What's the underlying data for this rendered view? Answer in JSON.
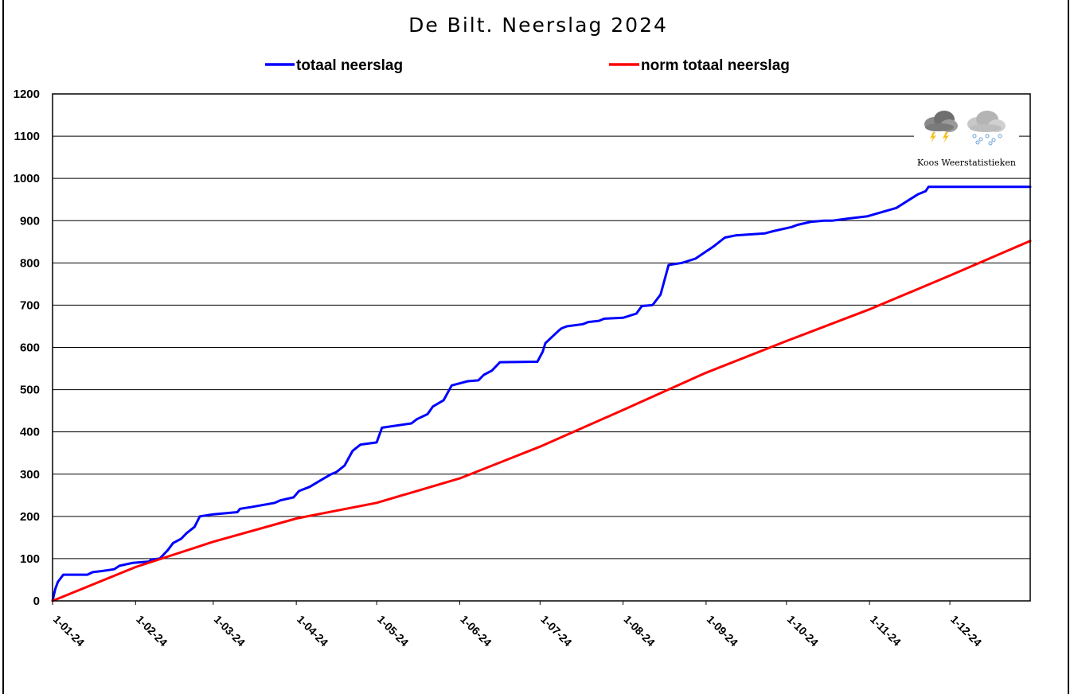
{
  "chart_data": {
    "type": "line",
    "title": "De Bilt. Neerslag 2024",
    "xlabel": "",
    "ylabel": "",
    "ylim": [
      0,
      1200
    ],
    "yticks": [
      0,
      100,
      200,
      300,
      400,
      500,
      600,
      700,
      800,
      900,
      1000,
      1100,
      1200
    ],
    "xlim": [
      "2024-01-01",
      "2024-12-31"
    ],
    "xtick_labels": [
      "1-01-24",
      "1-02-24",
      "1-03-24",
      "1-04-24",
      "1-05-24",
      "1-06-24",
      "1-07-24",
      "1-08-24",
      "1-09-24",
      "1-10-24",
      "1-11-24",
      "1-12-24"
    ],
    "xtick_dates": [
      "2024-01-01",
      "2024-02-01",
      "2024-03-01",
      "2024-04-01",
      "2024-05-01",
      "2024-06-01",
      "2024-07-01",
      "2024-08-01",
      "2024-09-01",
      "2024-10-01",
      "2024-11-01",
      "2024-12-01"
    ],
    "grid": true,
    "legend_position": "top",
    "series": [
      {
        "name": "totaal neerslag",
        "color": "#0000ff",
        "x": [
          "2024-01-01",
          "2024-01-02",
          "2024-01-03",
          "2024-01-05",
          "2024-01-14",
          "2024-01-16",
          "2024-01-21",
          "2024-01-24",
          "2024-01-26",
          "2024-01-31",
          "2024-02-06",
          "2024-02-07",
          "2024-02-10",
          "2024-02-13",
          "2024-02-15",
          "2024-02-18",
          "2024-02-20",
          "2024-02-23",
          "2024-02-25",
          "2024-03-01",
          "2024-03-10",
          "2024-03-11",
          "2024-03-15",
          "2024-03-24",
          "2024-03-26",
          "2024-03-31",
          "2024-04-02",
          "2024-04-04",
          "2024-04-06",
          "2024-04-10",
          "2024-04-14",
          "2024-04-16",
          "2024-04-19",
          "2024-04-22",
          "2024-04-25",
          "2024-05-01",
          "2024-05-03",
          "2024-05-14",
          "2024-05-16",
          "2024-05-20",
          "2024-05-22",
          "2024-05-26",
          "2024-05-29",
          "2024-06-04",
          "2024-06-08",
          "2024-06-10",
          "2024-06-13",
          "2024-06-16",
          "2024-06-30",
          "2024-07-02",
          "2024-07-03",
          "2024-07-08",
          "2024-07-09",
          "2024-07-11",
          "2024-07-17",
          "2024-07-19",
          "2024-07-23",
          "2024-07-25",
          "2024-08-01",
          "2024-08-06",
          "2024-08-08",
          "2024-08-12",
          "2024-08-15",
          "2024-08-18",
          "2024-08-23",
          "2024-08-28",
          "2024-09-04",
          "2024-09-08",
          "2024-09-12",
          "2024-09-23",
          "2024-09-26",
          "2024-10-03",
          "2024-10-05",
          "2024-10-10",
          "2024-10-15",
          "2024-10-18",
          "2024-10-24",
          "2024-10-31",
          "2024-11-11",
          "2024-11-16",
          "2024-11-19",
          "2024-11-22",
          "2024-11-23",
          "2024-11-24",
          "2024-11-26",
          "2024-12-31"
        ],
        "values": [
          0,
          28,
          45,
          62,
          62,
          68,
          72,
          75,
          83,
          90,
          93,
          98,
          100,
          120,
          137,
          147,
          160,
          175,
          200,
          205,
          210,
          218,
          222,
          232,
          238,
          245,
          260,
          265,
          270,
          285,
          300,
          305,
          320,
          355,
          370,
          375,
          410,
          420,
          430,
          442,
          460,
          475,
          510,
          520,
          522,
          535,
          545,
          565,
          566,
          590,
          610,
          640,
          645,
          650,
          655,
          660,
          663,
          668,
          670,
          680,
          698,
          700,
          725,
          795,
          800,
          810,
          840,
          860,
          865,
          870,
          875,
          885,
          890,
          897,
          900,
          900,
          905,
          910,
          930,
          950,
          962,
          970,
          980,
          980,
          980,
          980
        ]
      },
      {
        "name": "norm totaal neerslag",
        "color": "#ff0000",
        "x": [
          "2024-01-01",
          "2024-02-01",
          "2024-03-01",
          "2024-04-01",
          "2024-05-01",
          "2024-06-01",
          "2024-07-01",
          "2024-08-01",
          "2024-09-01",
          "2024-10-01",
          "2024-11-01",
          "2024-12-01",
          "2024-12-31"
        ],
        "values": [
          0,
          80,
          140,
          195,
          232,
          290,
          365,
          452,
          540,
          615,
          690,
          770,
          852
        ]
      }
    ]
  },
  "logo": {
    "text": "Koos Weerstatistieken"
  }
}
